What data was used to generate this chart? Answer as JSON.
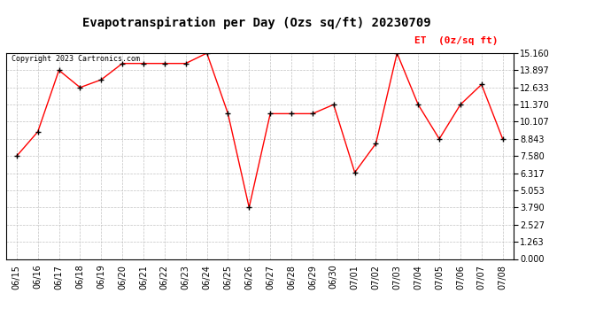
{
  "title": "Evapotranspiration per Day (Ozs sq/ft) 20230709",
  "legend_label": "ET  (0z/sq ft)",
  "copyright_text": "Copyright 2023 Cartronics.com",
  "dates": [
    "06/15",
    "06/16",
    "06/17",
    "06/18",
    "06/19",
    "06/20",
    "06/21",
    "06/22",
    "06/23",
    "06/24",
    "06/25",
    "06/26",
    "06/27",
    "06/28",
    "06/29",
    "06/30",
    "07/01",
    "07/02",
    "07/03",
    "07/04",
    "07/05",
    "07/06",
    "07/07",
    "07/08"
  ],
  "values": [
    7.58,
    9.37,
    13.9,
    12.63,
    13.2,
    14.4,
    14.4,
    14.4,
    14.4,
    15.16,
    10.7,
    3.79,
    10.7,
    10.7,
    10.7,
    11.37,
    6.37,
    8.5,
    15.16,
    11.37,
    8.84,
    11.37,
    12.85,
    8.84
  ],
  "y_ticks": [
    0.0,
    1.263,
    2.527,
    3.79,
    5.053,
    6.317,
    7.58,
    8.843,
    10.107,
    11.37,
    12.633,
    13.897,
    15.16
  ],
  "ylim": [
    0.0,
    15.16
  ],
  "line_color": "red",
  "marker_color": "black",
  "grid_color": "#bbbbbb",
  "bg_color": "white",
  "title_fontsize": 10,
  "copyright_fontsize": 6,
  "tick_fontsize": 7,
  "legend_fontsize": 8,
  "y_tick_fontsize": 7
}
